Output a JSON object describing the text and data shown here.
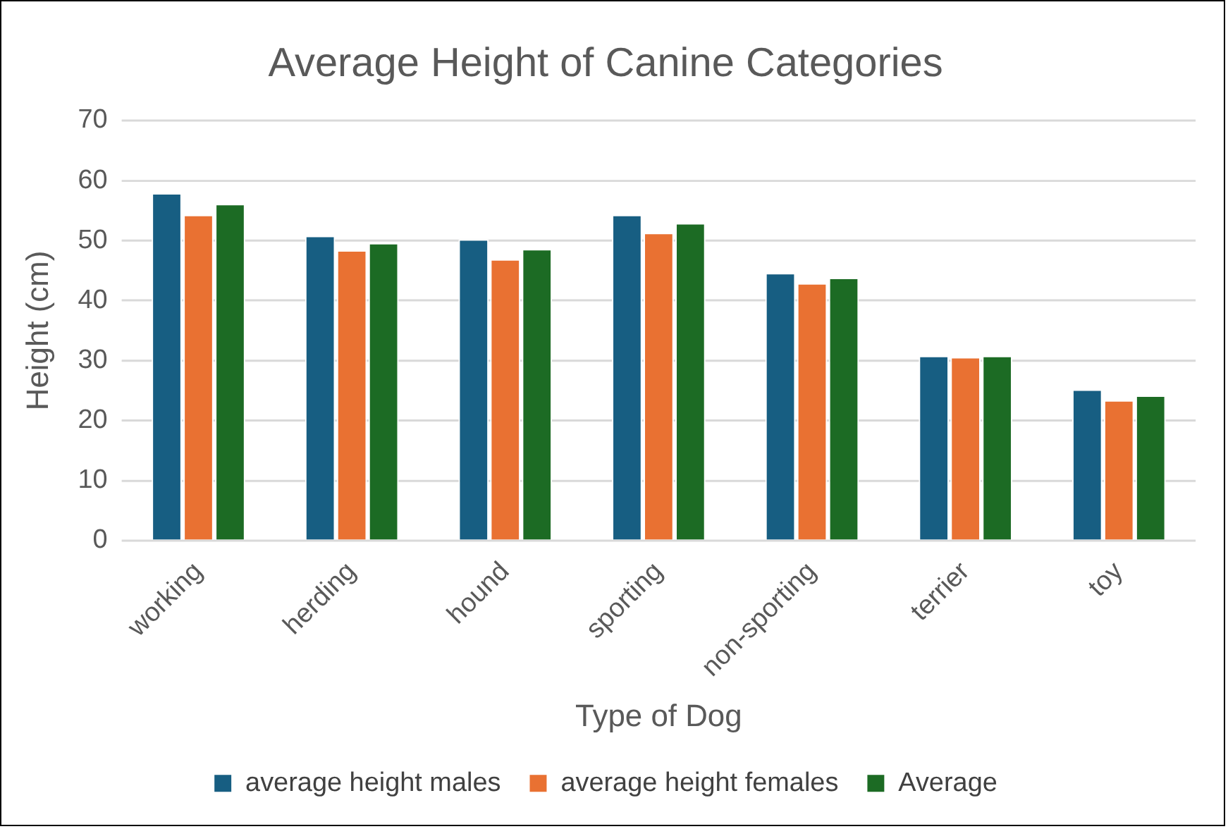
{
  "chart_data": {
    "type": "bar",
    "title": "Average Height of Canine Categories",
    "xlabel": "Type of Dog",
    "ylabel": "Height (cm)",
    "categories": [
      "working",
      "herding",
      "hound",
      "sporting",
      "non-sporting",
      "terrier",
      "toy"
    ],
    "series": [
      {
        "name": "average height males",
        "color": "#175e82",
        "values": [
          57.9,
          50.8,
          50.2,
          54.3,
          44.6,
          30.8,
          25.2
        ]
      },
      {
        "name": "average height females",
        "color": "#e97132",
        "values": [
          54.3,
          48.4,
          46.9,
          51.3,
          42.9,
          30.6,
          23.4
        ]
      },
      {
        "name": "Average",
        "color": "#1c6b24",
        "values": [
          56.1,
          49.6,
          48.6,
          52.9,
          43.8,
          30.8,
          24.2
        ]
      }
    ],
    "ylim": [
      0,
      70
    ],
    "yticks": [
      0,
      10,
      20,
      30,
      40,
      50,
      60,
      70
    ],
    "grid": "y",
    "legend": "bottom"
  }
}
